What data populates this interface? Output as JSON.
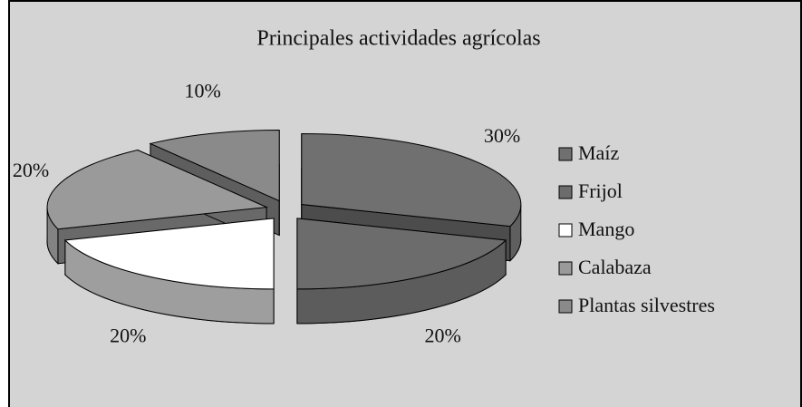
{
  "chart_data": {
    "type": "pie3d",
    "title": "Principales actividades agrícolas",
    "categories": [
      "Maíz",
      "Frijol",
      "Mango",
      "Calabaza",
      "Plantas silvestres"
    ],
    "values": [
      30,
      20,
      20,
      20,
      10
    ],
    "value_labels": [
      "30%",
      "20%",
      "20%",
      "20%",
      "10%"
    ],
    "colors": [
      "#707070",
      "#6c6c6c",
      "#ffffff",
      "#9a9a9a",
      "#8a8a8a"
    ],
    "legend": "right"
  }
}
